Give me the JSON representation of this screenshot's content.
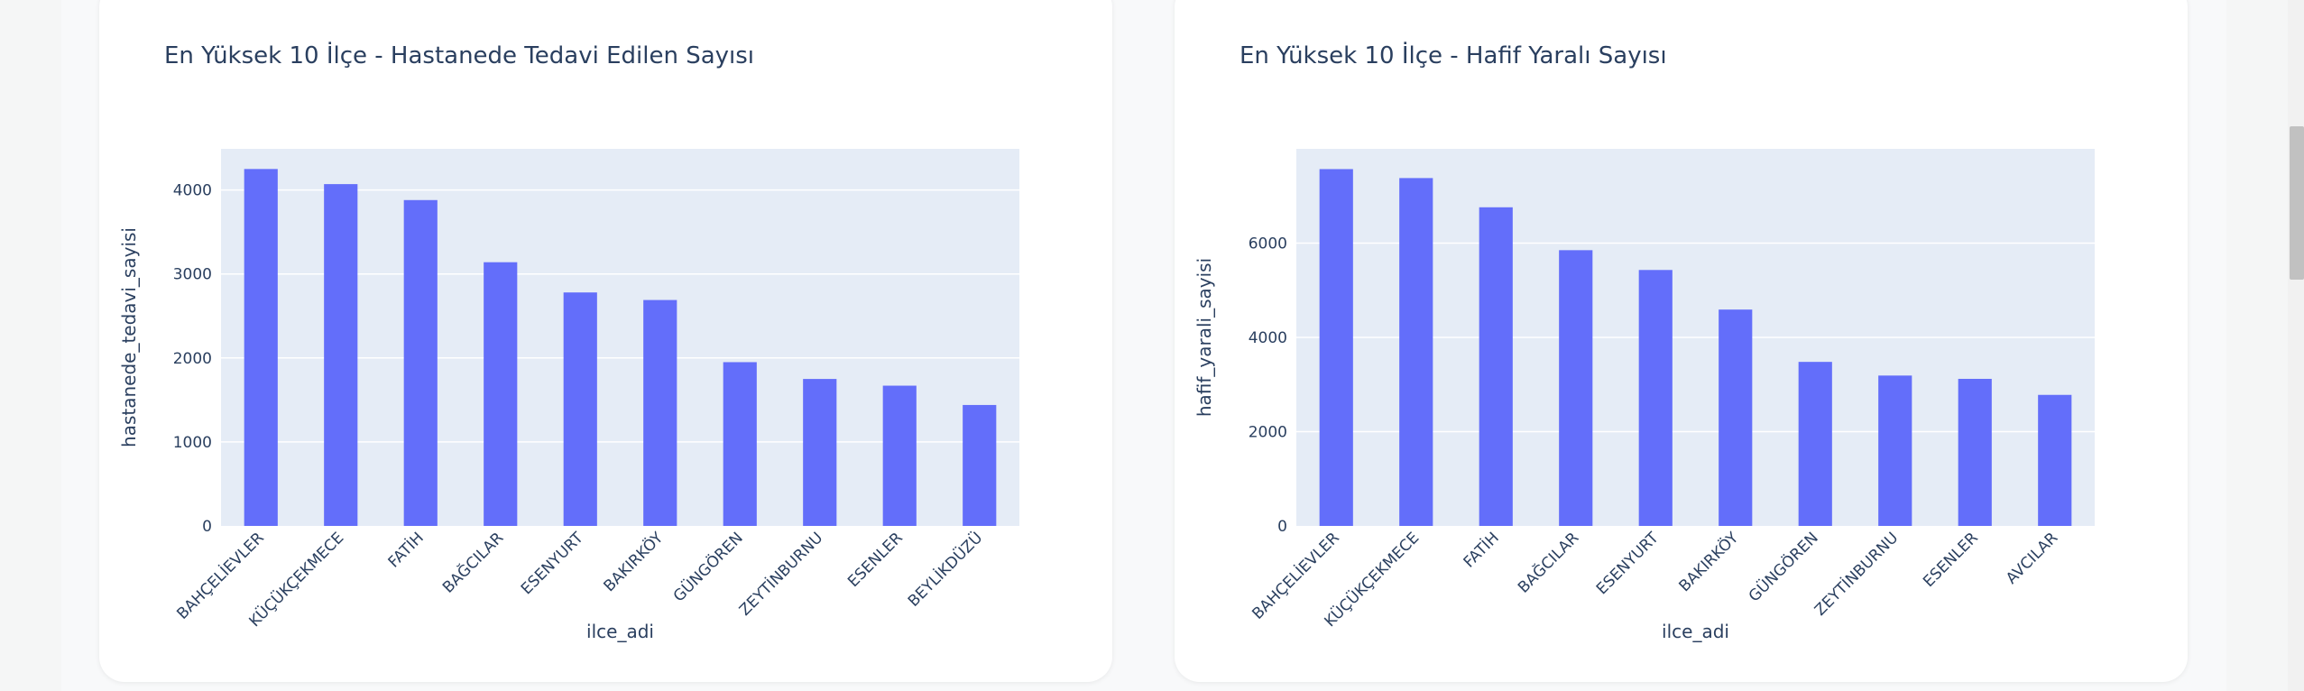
{
  "chart_data": [
    {
      "type": "bar",
      "title": "En Yüksek 10 İlçe - Hastanede Tedavi Edilen Sayısı",
      "xlabel": "ilce_adi",
      "ylabel": "hastanede_tedavi_sayisi",
      "categories": [
        "BAHÇELİEVLER",
        "KÜÇÜKÇEKMECE",
        "FATİH",
        "BAĞCILAR",
        "ESENYURT",
        "BAKIRKÖY",
        "GÜNGÖREN",
        "ZEYTİNBURNU",
        "ESENLER",
        "BEYLİKDÜZÜ"
      ],
      "values": [
        4250,
        4070,
        3880,
        3140,
        2780,
        2690,
        1950,
        1750,
        1670,
        1440
      ],
      "ylim": [
        0,
        4490
      ],
      "yticks": [
        0,
        1000,
        2000,
        3000,
        4000
      ],
      "ytick_labels": [
        "0",
        "1000",
        "2000",
        "3000",
        "4000"
      ],
      "grid": true,
      "bar_color": "#636efa"
    },
    {
      "type": "bar",
      "title": "En Yüksek 10 İlçe - Hafif Yaralı Sayısı",
      "xlabel": "ilce_adi",
      "ylabel": "hafif_yarali_sayisi",
      "categories": [
        "BAHÇELİEVLER",
        "KÜÇÜKÇEKMECE",
        "FATİH",
        "BAĞCILAR",
        "ESENYURT",
        "BAKIRKÖY",
        "GÜNGÖREN",
        "ZEYTİNBURNU",
        "ESENLER",
        "AVCILAR"
      ],
      "values": [
        7570,
        7380,
        6760,
        5850,
        5430,
        4590,
        3480,
        3190,
        3120,
        2780
      ],
      "ylim": [
        0,
        8000
      ],
      "yticks": [
        0,
        2000,
        4000,
        6000
      ],
      "ytick_labels": [
        "0",
        "2000",
        "4000",
        "6000"
      ],
      "grid": true,
      "bar_color": "#636efa"
    }
  ]
}
